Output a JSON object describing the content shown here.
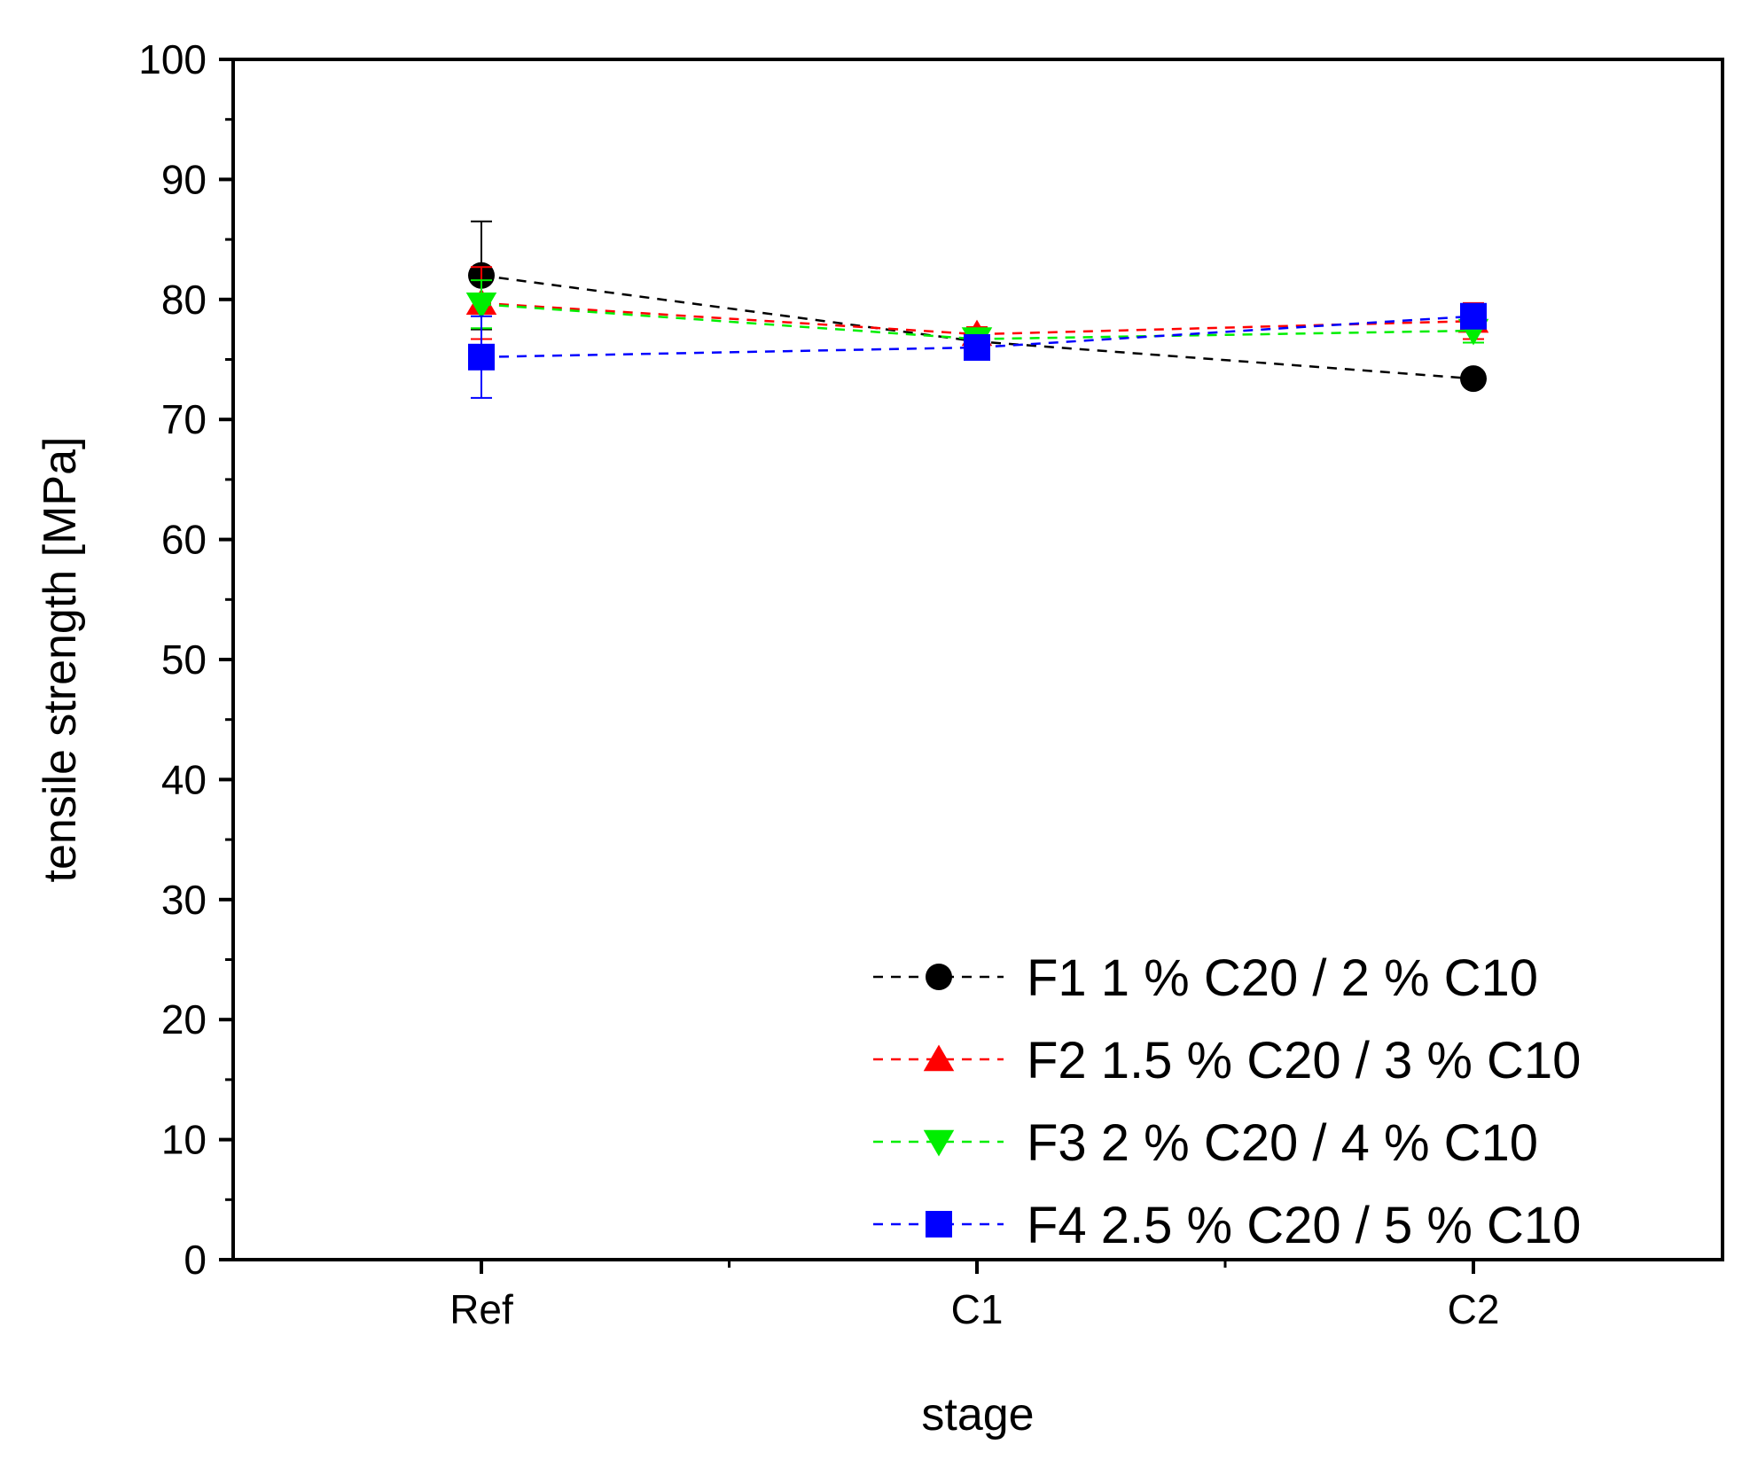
{
  "chart_data": {
    "type": "line",
    "title": "",
    "xlabel": "stage",
    "ylabel": "tensile strength [MPa]",
    "categories": [
      "Ref",
      "C1",
      "C2"
    ],
    "ylim": [
      0,
      100
    ],
    "yticks": [
      0,
      10,
      20,
      30,
      40,
      50,
      60,
      70,
      80,
      90,
      100
    ],
    "grid": false,
    "legend_position": "bottom-right",
    "series": [
      {
        "name": "F1 1 % C20 / 2 % C10",
        "color": "#000000",
        "marker": "circle",
        "values": [
          82.0,
          76.5,
          73.4
        ],
        "errors": [
          4.5,
          0.5,
          0.5
        ]
      },
      {
        "name": "F2 1.5 % C20 / 3 % C10",
        "color": "#ff0000",
        "marker": "triangle-up",
        "values": [
          79.7,
          77.1,
          78.2
        ],
        "errors": [
          3.0,
          0.6,
          1.5
        ]
      },
      {
        "name": "F3 2 % C20 / 4 % C10",
        "color": "#00ee00",
        "marker": "triangle-down",
        "values": [
          79.6,
          76.7,
          77.4
        ],
        "errors": [
          2.0,
          0.5,
          1.0
        ]
      },
      {
        "name": "F4 2.5 % C20 / 5 % C10",
        "color": "#0000ff",
        "marker": "square",
        "values": [
          75.2,
          76.0,
          78.6
        ],
        "errors": [
          3.4,
          0.5,
          0.8
        ]
      }
    ]
  }
}
